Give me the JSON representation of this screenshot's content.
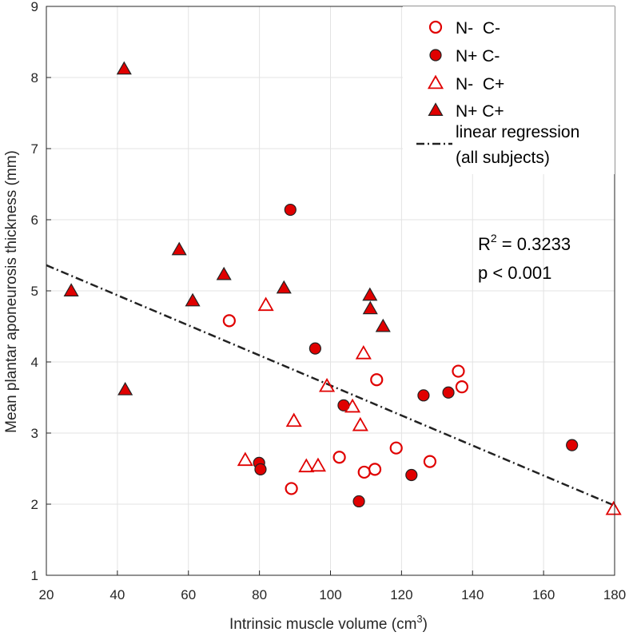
{
  "chart_data": {
    "type": "scatter",
    "xlabel": "Intrinsic muscle volume (cm",
    "xlabel_sup": "3",
    "xlabel_end": ")",
    "ylabel": "Mean plantar aponeurosis thickness (mm)",
    "xlim": [
      20,
      180
    ],
    "ylim": [
      1,
      9
    ],
    "xticks": [
      20,
      40,
      60,
      80,
      100,
      120,
      140,
      160,
      180
    ],
    "yticks": [
      1,
      2,
      3,
      4,
      5,
      6,
      7,
      8,
      9
    ],
    "grid": true,
    "legend_position": "top-right",
    "series": [
      {
        "name": "N-  C-",
        "marker": "circle-open",
        "color": "#e00000",
        "points": [
          [
            71.5,
            4.58
          ],
          [
            89,
            2.22
          ],
          [
            102.5,
            2.66
          ],
          [
            109.5,
            2.45
          ],
          [
            112.5,
            2.49
          ],
          [
            113,
            3.75
          ],
          [
            118.5,
            2.79
          ],
          [
            128,
            2.6
          ],
          [
            136,
            3.87
          ],
          [
            137,
            3.65
          ]
        ]
      },
      {
        "name": "N+ C-",
        "marker": "circle-filled",
        "color": "#e00000",
        "points": [
          [
            88.7,
            6.14
          ],
          [
            95.7,
            4.19
          ],
          [
            79.9,
            2.58
          ],
          [
            80.3,
            2.49
          ],
          [
            103.7,
            3.39
          ],
          [
            108,
            2.04
          ],
          [
            122.8,
            2.41
          ],
          [
            126.2,
            3.53
          ],
          [
            133.2,
            3.57
          ],
          [
            168,
            2.83
          ]
        ]
      },
      {
        "name": "N-  C+",
        "marker": "triangle-open",
        "color": "#e00000",
        "points": [
          [
            81.8,
            4.8
          ],
          [
            76,
            2.62
          ],
          [
            89.7,
            3.17
          ],
          [
            93.2,
            2.53
          ],
          [
            96.5,
            2.54
          ],
          [
            99,
            3.66
          ],
          [
            106.2,
            3.37
          ],
          [
            108.4,
            3.11
          ],
          [
            109.3,
            4.12
          ],
          [
            179.7,
            1.93
          ]
        ]
      },
      {
        "name": "N+ C+",
        "marker": "triangle-filled",
        "color": "#e00000",
        "points": [
          [
            41.9,
            8.12
          ],
          [
            42.2,
            3.61
          ],
          [
            27,
            5.0
          ],
          [
            57.4,
            5.58
          ],
          [
            61.2,
            4.86
          ],
          [
            70,
            5.23
          ],
          [
            86.9,
            5.04
          ],
          [
            111.1,
            4.94
          ],
          [
            111.2,
            4.75
          ],
          [
            114.8,
            4.5
          ]
        ]
      }
    ],
    "regression": {
      "name_line1": "linear regression",
      "name_line2": "(all subjects)",
      "x": [
        20,
        180
      ],
      "y": [
        5.36,
        1.98
      ],
      "color": "#222222"
    },
    "annotation": {
      "r2_prefix": "R",
      "r2_sup": "2",
      "r2_value": " = 0.3233",
      "p_text": "p < 0.001"
    }
  }
}
